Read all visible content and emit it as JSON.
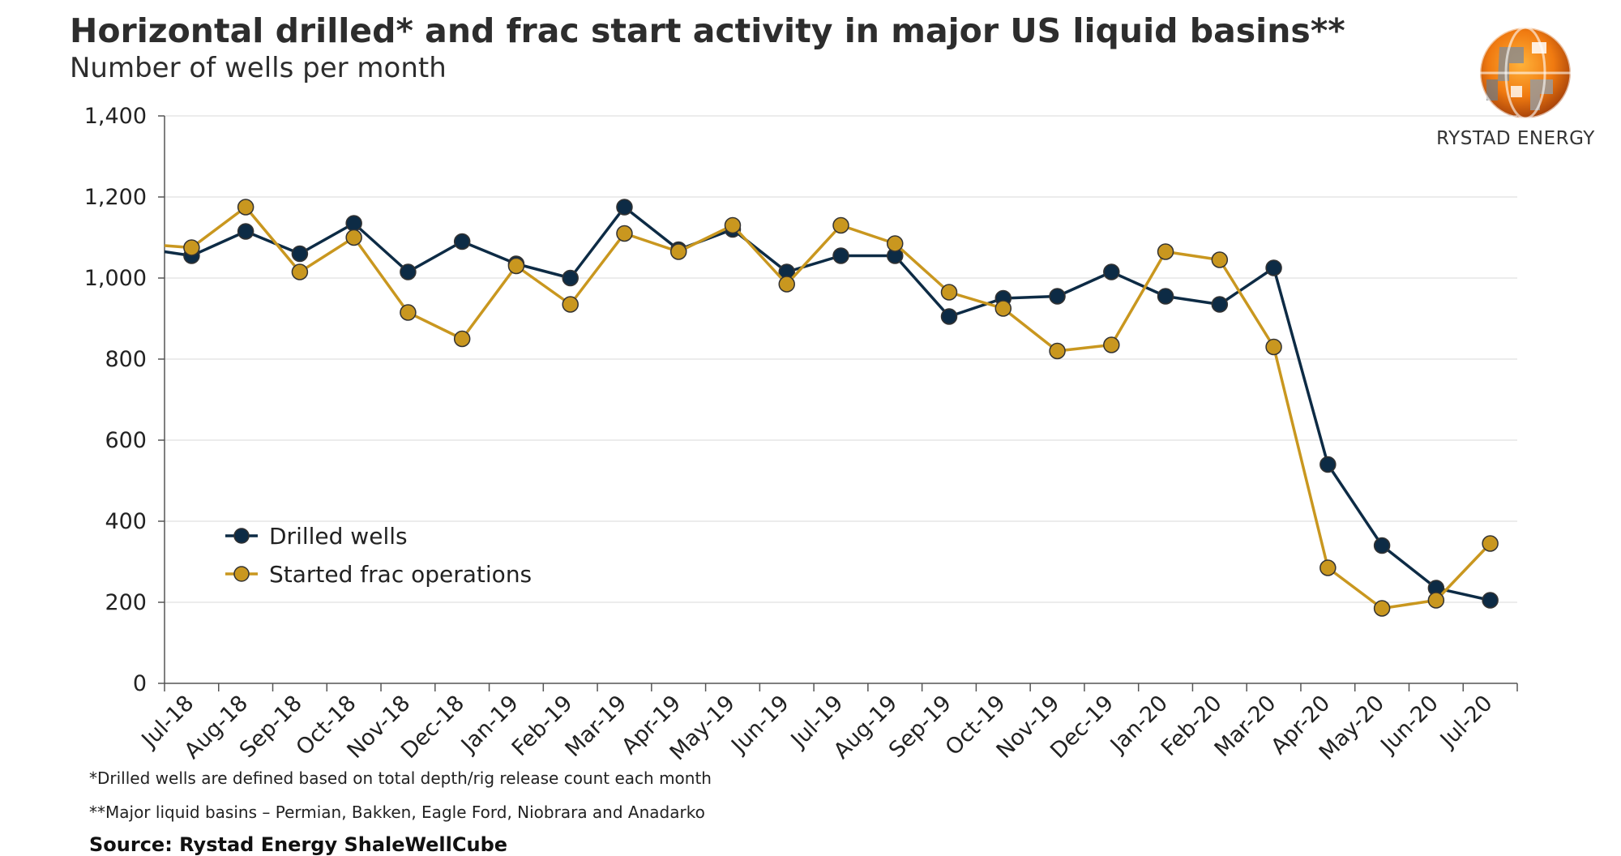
{
  "header": {
    "title": "Horizontal drilled* and frac start activity in major US liquid basins**",
    "subtitle": "Number of wells per month"
  },
  "logo": {
    "icon": "globe-icon",
    "text": "RYSTAD ENERGY"
  },
  "footnotes": {
    "note1": "*Drilled wells are defined based on total depth/rig release count each month",
    "note2": "**Major liquid basins – Permian, Bakken, Eagle Ford, Niobrara and Anadarko",
    "source": "Source: Rystad Energy ShaleWellCube"
  },
  "chart_data": {
    "type": "line",
    "title": "Horizontal drilled* and frac start activity in major US liquid basins**",
    "subtitle": "Number of wells per month",
    "xlabel": "",
    "ylabel": "",
    "ylim": [
      0,
      1400
    ],
    "yticks": [
      0,
      200,
      400,
      600,
      800,
      1000,
      1200,
      1400
    ],
    "ytick_labels": [
      "0",
      "200",
      "400",
      "600",
      "800",
      "1,000",
      "1,200",
      "1,400"
    ],
    "grid": true,
    "legend_position": "lower-left",
    "categories": [
      "Jul-18",
      "Aug-18",
      "Sep-18",
      "Oct-18",
      "Nov-18",
      "Dec-18",
      "Jan-19",
      "Feb-19",
      "Mar-19",
      "Apr-19",
      "May-19",
      "Jun-19",
      "Jul-19",
      "Aug-19",
      "Sep-19",
      "Oct-19",
      "Nov-19",
      "Dec-19",
      "Jan-20",
      "Feb-20",
      "Mar-20",
      "Apr-20",
      "May-20",
      "Jun-20",
      "Jul-20"
    ],
    "series": [
      {
        "name": "Drilled wells",
        "color": "#0d2b45",
        "start_value": 1065,
        "values": [
          1055,
          1115,
          1060,
          1135,
          1015,
          1090,
          1035,
          1000,
          1175,
          1070,
          1120,
          1015,
          1055,
          1055,
          905,
          950,
          955,
          1015,
          955,
          935,
          1025,
          540,
          340,
          235,
          205
        ]
      },
      {
        "name": "Started frac operations",
        "color": "#c9971f",
        "start_value": 1080,
        "values": [
          1075,
          1175,
          1015,
          1100,
          915,
          850,
          1030,
          935,
          1110,
          1065,
          1130,
          985,
          1130,
          1085,
          965,
          925,
          820,
          835,
          1065,
          1045,
          830,
          285,
          185,
          205,
          345
        ]
      }
    ]
  }
}
